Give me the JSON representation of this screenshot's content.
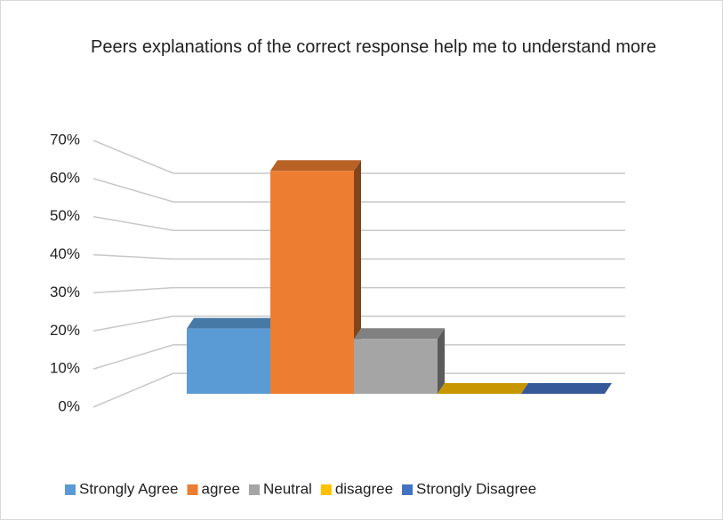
{
  "chart_data": {
    "type": "bar3d",
    "title": "Peers explanations of the correct response  help me to understand more",
    "categories": [
      "Strongly Agree",
      "agree",
      "Neutral",
      "disagree",
      "Strongly Disagree"
    ],
    "series": [
      {
        "name": "Strongly Agree",
        "color": "#5b9bd5",
        "values": [
          19,
          null,
          null,
          null,
          null
        ]
      },
      {
        "name": "agree",
        "color": "#ed7d31",
        "values": [
          null,
          65,
          null,
          null,
          null
        ]
      },
      {
        "name": "Neutral",
        "color": "#a5a5a5",
        "values": [
          null,
          null,
          16,
          null,
          null
        ]
      },
      {
        "name": "disagree",
        "color": "#ffc000",
        "values": [
          null,
          null,
          null,
          0,
          null
        ]
      },
      {
        "name": "Strongly Disagree",
        "color": "#4472c4",
        "values": [
          null,
          null,
          null,
          null,
          0
        ]
      }
    ],
    "ylim": [
      0,
      70
    ],
    "yticks": [
      {
        "value": 0,
        "label": "0%"
      },
      {
        "value": 10,
        "label": "10%"
      },
      {
        "value": 20,
        "label": "20%"
      },
      {
        "value": 30,
        "label": "30%"
      },
      {
        "value": 40,
        "label": "40%"
      },
      {
        "value": 50,
        "label": "50%"
      },
      {
        "value": 60,
        "label": "60%"
      },
      {
        "value": 70,
        "label": "70%"
      }
    ],
    "grid": true,
    "legend": "bottom"
  }
}
